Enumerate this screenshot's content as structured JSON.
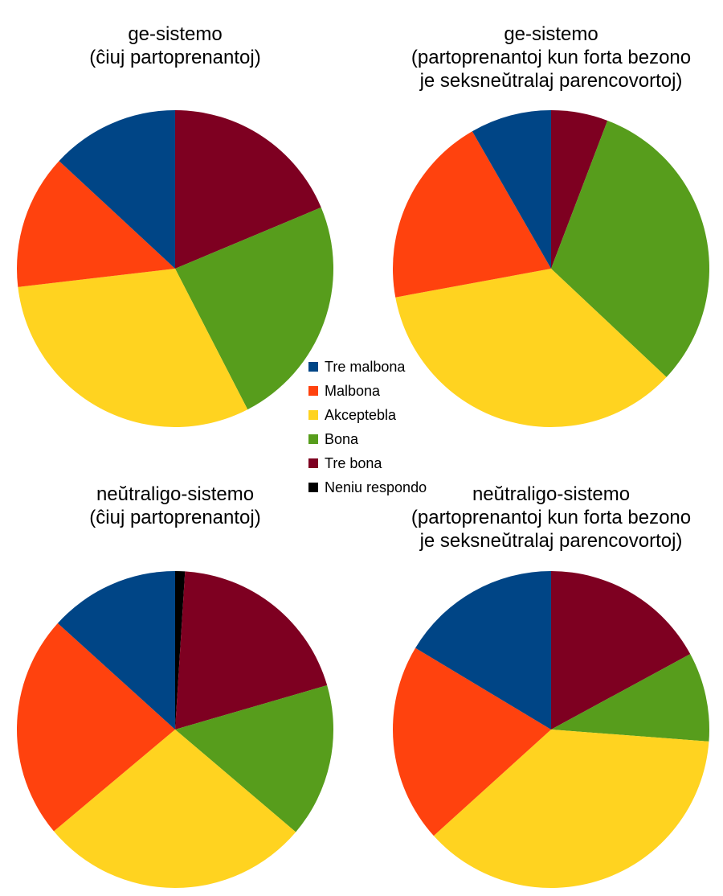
{
  "chart_data": {
    "type": "pie",
    "legend": {
      "placement": "center",
      "entries": [
        {
          "label": "Tre malbona",
          "color": "#004586"
        },
        {
          "label": "Malbona",
          "color": "#ff420e"
        },
        {
          "label": "Akceptebla",
          "color": "#ffd320"
        },
        {
          "label": "Bona",
          "color": "#579d1c"
        },
        {
          "label": "Tre bona",
          "color": "#7e0021"
        },
        {
          "label": "Neniu respondo",
          "color": "#000000"
        }
      ]
    },
    "charts": [
      {
        "title_lines": [
          "ge-sistemo",
          "(ĉiuj partoprenantoj)"
        ],
        "categories": [
          "Tre malbona",
          "Malbona",
          "Akceptebla",
          "Bona",
          "Tre bona",
          "Neniu respondo"
        ],
        "values": [
          12.2,
          12.8,
          28.6,
          22.1,
          17.4,
          0
        ]
      },
      {
        "title_lines": [
          "ge-sistemo",
          "(partoprenantoj kun forta bezono",
          "je seksneŭtralaj parencovortoj)"
        ],
        "categories": [
          "Tre malbona",
          "Malbona",
          "Akceptebla",
          "Bona",
          "Tre bona",
          "Neniu respondo"
        ],
        "values": [
          8.3,
          19.6,
          35.1,
          31.2,
          5.8,
          0
        ]
      },
      {
        "title_lines": [
          "neŭtraligo-sistemo",
          "(ĉiuj partoprenantoj)"
        ],
        "categories": [
          "Tre malbona",
          "Malbona",
          "Akceptebla",
          "Bona",
          "Tre bona",
          "Neniu respondo"
        ],
        "values": [
          13.3,
          22.8,
          27.7,
          15.7,
          19.5,
          1.0
        ]
      },
      {
        "title_lines": [
          "neŭtraligo-sistemo",
          "(partoprenantoj kun forta bezono",
          "je seksneŭtralaj parencovortoj)"
        ],
        "categories": [
          "Tre malbona",
          "Malbona",
          "Akceptebla",
          "Bona",
          "Tre bona",
          "Neniu respondo"
        ],
        "values": [
          16.4,
          20.3,
          37.1,
          9.1,
          17.1,
          0
        ]
      }
    ]
  }
}
